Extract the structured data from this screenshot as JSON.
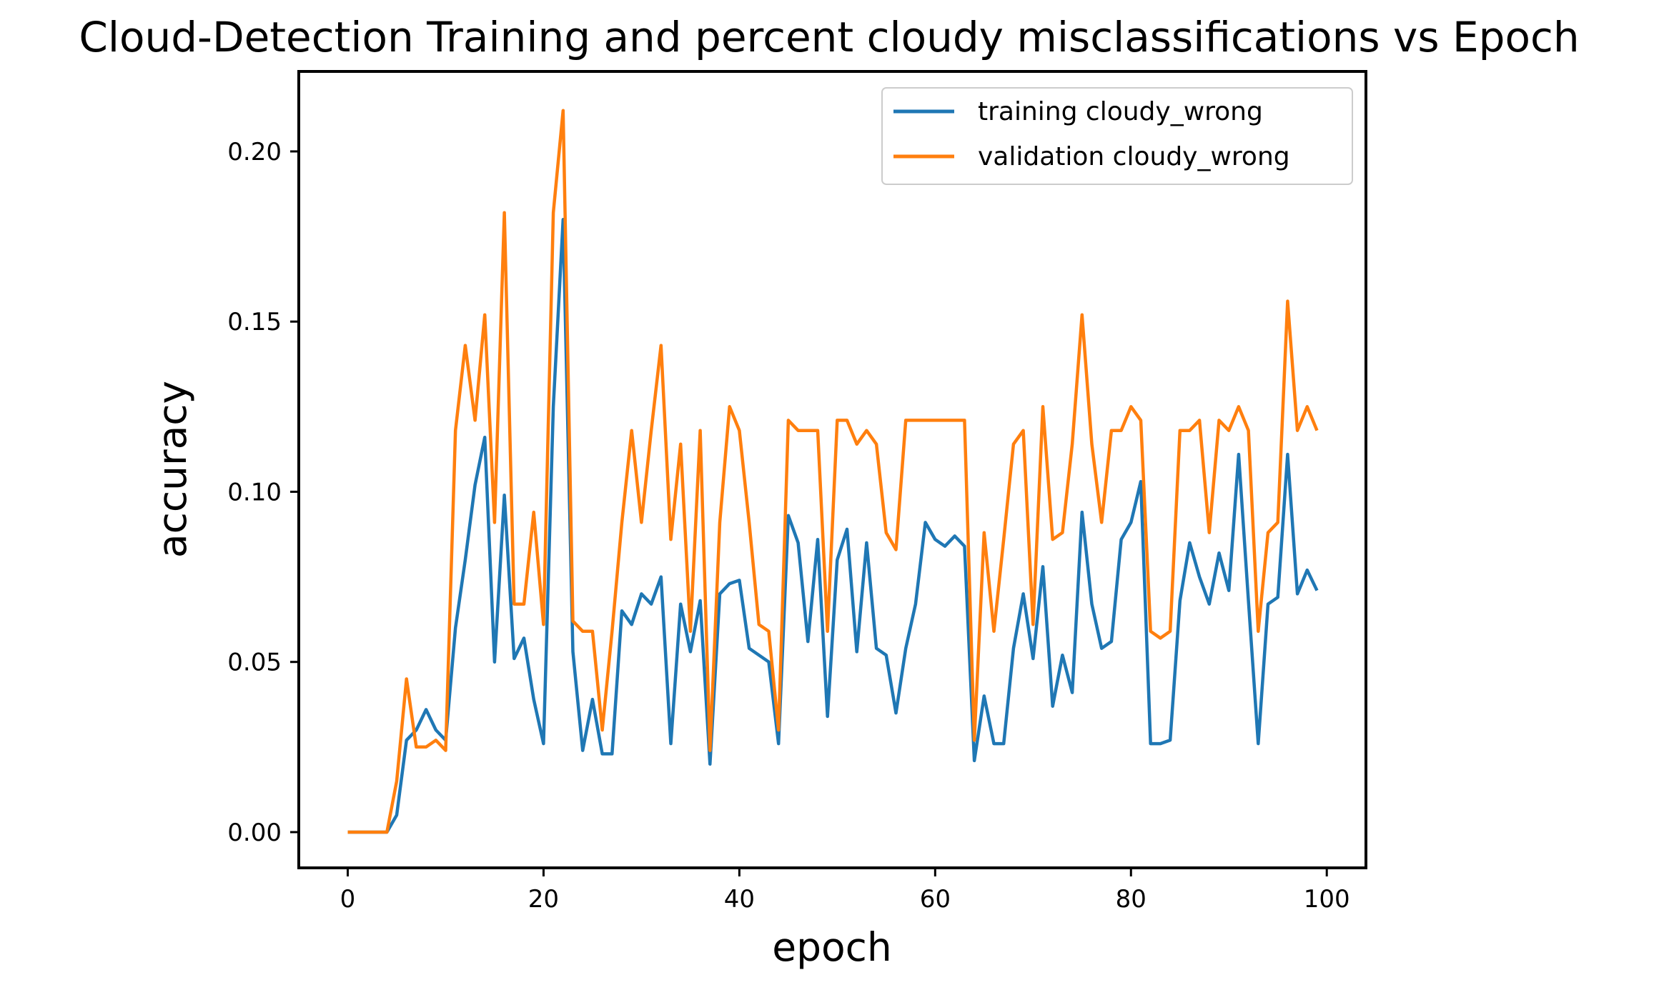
{
  "chart_data": {
    "type": "line",
    "title": "Cloud-Detection Training and percent cloudy misclassifications vs Epoch",
    "xlabel": "epoch",
    "ylabel": "accuracy",
    "xlim": [
      -5,
      104
    ],
    "ylim": [
      -0.0105,
      0.2235
    ],
    "xticks": [
      0,
      20,
      40,
      60,
      80,
      100
    ],
    "xtick_labels": [
      "0",
      "20",
      "40",
      "60",
      "80",
      "100"
    ],
    "yticks": [
      0.0,
      0.05,
      0.1,
      0.15,
      0.2
    ],
    "ytick_labels": [
      "0.00",
      "0.05",
      "0.10",
      "0.15",
      "0.20"
    ],
    "grid": false,
    "legend_position": "top-right",
    "x": [
      0,
      1,
      2,
      3,
      4,
      5,
      6,
      7,
      8,
      9,
      10,
      11,
      12,
      13,
      14,
      15,
      16,
      17,
      18,
      19,
      20,
      21,
      22,
      23,
      24,
      25,
      26,
      27,
      28,
      29,
      30,
      31,
      32,
      33,
      34,
      35,
      36,
      37,
      38,
      39,
      40,
      41,
      42,
      43,
      44,
      45,
      46,
      47,
      48,
      49,
      50,
      51,
      52,
      53,
      54,
      55,
      56,
      57,
      58,
      59,
      60,
      61,
      62,
      63,
      64,
      65,
      66,
      67,
      68,
      69,
      70,
      71,
      72,
      73,
      74,
      75,
      76,
      77,
      78,
      79,
      80,
      81,
      82,
      83,
      84,
      85,
      86,
      87,
      88,
      89,
      90,
      91,
      92,
      93,
      94,
      95,
      96,
      97,
      98,
      99
    ],
    "series": [
      {
        "name": "training cloudy_wrong",
        "color": "#1f77b4",
        "values": [
          0,
          0,
          0,
          0,
          0,
          0.005,
          0.027,
          0.03,
          0.036,
          0.03,
          0.027,
          0.06,
          0.08,
          0.102,
          0.116,
          0.05,
          0.099,
          0.051,
          0.057,
          0.039,
          0.026,
          0.125,
          0.18,
          0.053,
          0.024,
          0.039,
          0.023,
          0.023,
          0.065,
          0.061,
          0.07,
          0.067,
          0.075,
          0.026,
          0.067,
          0.053,
          0.068,
          0.02,
          0.07,
          0.073,
          0.074,
          0.054,
          0.052,
          0.05,
          0.026,
          0.093,
          0.085,
          0.056,
          0.086,
          0.034,
          0.08,
          0.089,
          0.053,
          0.085,
          0.054,
          0.052,
          0.035,
          0.054,
          0.067,
          0.091,
          0.086,
          0.084,
          0.087,
          0.084,
          0.021,
          0.04,
          0.026,
          0.026,
          0.054,
          0.07,
          0.051,
          0.078,
          0.037,
          0.052,
          0.041,
          0.094,
          0.067,
          0.054,
          0.056,
          0.086,
          0.091,
          0.103,
          0.026,
          0.026,
          0.027,
          0.068,
          0.085,
          0.075,
          0.067,
          0.082,
          0.071,
          0.111,
          0.068,
          0.026,
          0.067,
          0.069,
          0.111,
          0.07,
          0.077,
          0.071
        ]
      },
      {
        "name": "validation cloudy_wrong",
        "color": "#ff7f0e",
        "values": [
          0,
          0,
          0,
          0,
          0,
          0.015,
          0.045,
          0.025,
          0.025,
          0.027,
          0.024,
          0.118,
          0.143,
          0.121,
          0.152,
          0.091,
          0.182,
          0.067,
          0.067,
          0.094,
          0.061,
          0.182,
          0.212,
          0.062,
          0.059,
          0.059,
          0.03,
          0.059,
          0.091,
          0.118,
          0.091,
          0.118,
          0.143,
          0.086,
          0.114,
          0.059,
          0.118,
          0.024,
          0.091,
          0.125,
          0.118,
          0.091,
          0.061,
          0.059,
          0.03,
          0.121,
          0.118,
          0.118,
          0.118,
          0.059,
          0.121,
          0.121,
          0.114,
          0.118,
          0.114,
          0.088,
          0.083,
          0.121,
          0.121,
          0.121,
          0.121,
          0.121,
          0.121,
          0.121,
          0.027,
          0.088,
          0.059,
          0.086,
          0.114,
          0.118,
          0.061,
          0.125,
          0.086,
          0.088,
          0.114,
          0.152,
          0.114,
          0.091,
          0.118,
          0.118,
          0.125,
          0.121,
          0.059,
          0.057,
          0.059,
          0.118,
          0.118,
          0.121,
          0.088,
          0.121,
          0.118,
          0.125,
          0.118,
          0.059,
          0.088,
          0.091,
          0.156,
          0.118,
          0.125,
          0.118
        ]
      }
    ]
  }
}
